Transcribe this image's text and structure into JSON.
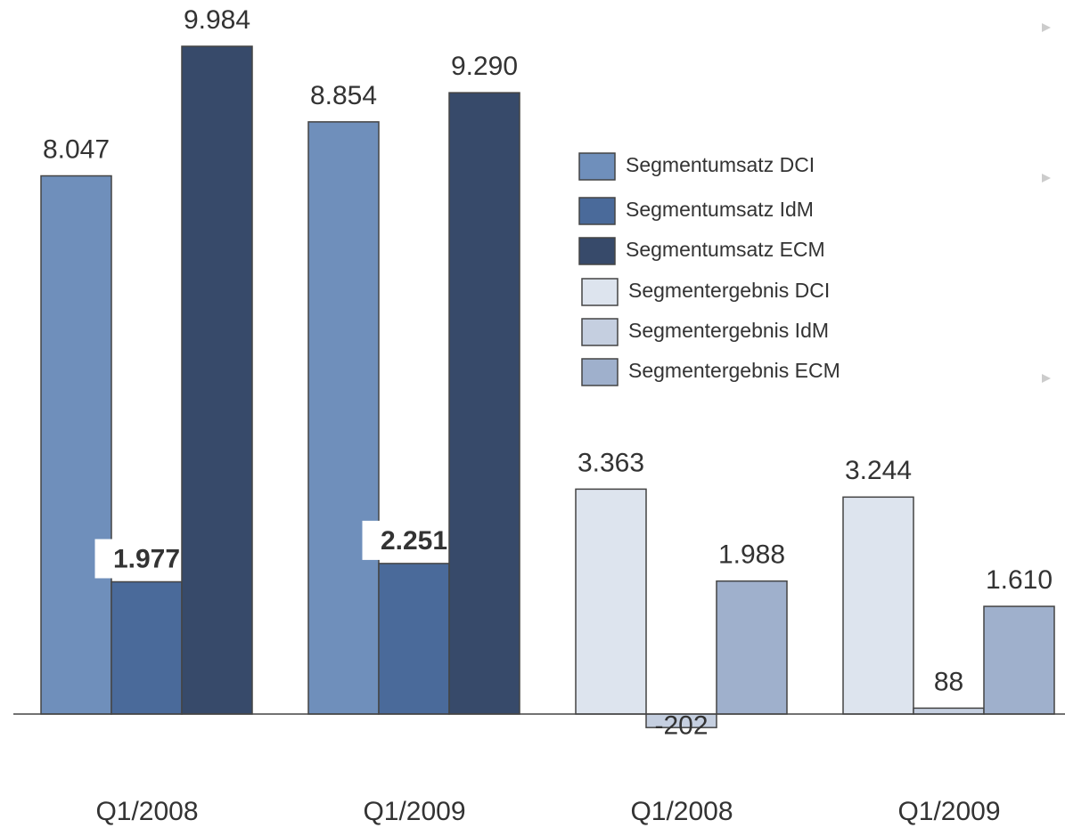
{
  "chart_data": {
    "type": "bar",
    "categories": [
      "Q1/2008",
      "Q1/2009",
      "Q1/2008",
      "Q1/2009"
    ],
    "series": [
      {
        "name": "Segmentumsatz DCI",
        "color": "#6f8fbb",
        "values": [
          8047,
          8854,
          null,
          null
        ],
        "value_labels": [
          "8.047",
          "8.854",
          null,
          null
        ]
      },
      {
        "name": "Segmentumsatz IdM",
        "color": "#4a6a9a",
        "values": [
          1977,
          2251,
          null,
          null
        ],
        "value_labels": [
          "1.977",
          "2.251",
          null,
          null
        ]
      },
      {
        "name": "Segmentumsatz ECM",
        "color": "#374a6a",
        "values": [
          9984,
          9290,
          null,
          null
        ],
        "value_labels": [
          "9.984",
          "9.290",
          null,
          null
        ]
      },
      {
        "name": "Segmentergebnis DCI",
        "color": "#dde4ee",
        "values": [
          null,
          null,
          3363,
          3244
        ],
        "value_labels": [
          null,
          null,
          "3.363",
          "3.244"
        ]
      },
      {
        "name": "Segmentergebnis IdM",
        "color": "#c5cfe0",
        "values": [
          null,
          null,
          -202,
          88
        ],
        "value_labels": [
          null,
          null,
          "-202",
          "88"
        ]
      },
      {
        "name": "Segmentergebnis ECM",
        "color": "#9fb0cc",
        "values": [
          null,
          null,
          1988,
          1610
        ],
        "value_labels": [
          null,
          null,
          "1.988",
          "1.610"
        ]
      }
    ]
  }
}
